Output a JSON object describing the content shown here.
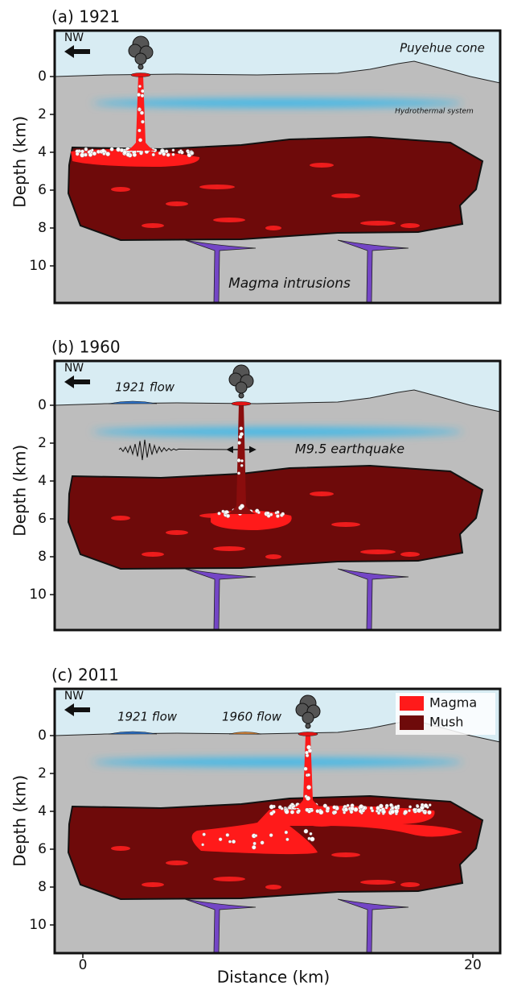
{
  "panels": [
    {
      "label": "(a) 1921",
      "ylabel": "Depth (km)",
      "yticks": [
        0,
        2,
        4,
        6,
        8,
        10
      ],
      "annotations": [
        "NW",
        "Puyehue cone",
        "Hydrothermal system",
        "Magma intrusions"
      ]
    },
    {
      "label": "(b) 1960",
      "ylabel": "Depth (km)",
      "yticks": [
        0,
        2,
        4,
        6,
        8,
        10
      ],
      "annotations": [
        "NW",
        "1921 flow",
        "M9.5 earthquake"
      ]
    },
    {
      "label": "(c) 2011",
      "ylabel": "Depth (km)",
      "yticks": [
        0,
        2,
        4,
        6,
        8,
        10
      ],
      "annotations": [
        "NW",
        "1921 flow",
        "1960 flow"
      ],
      "legend": [
        "Magma",
        "Mush"
      ]
    }
  ],
  "xlabel": "Distance (km)",
  "xticks": [
    0,
    20
  ]
}
